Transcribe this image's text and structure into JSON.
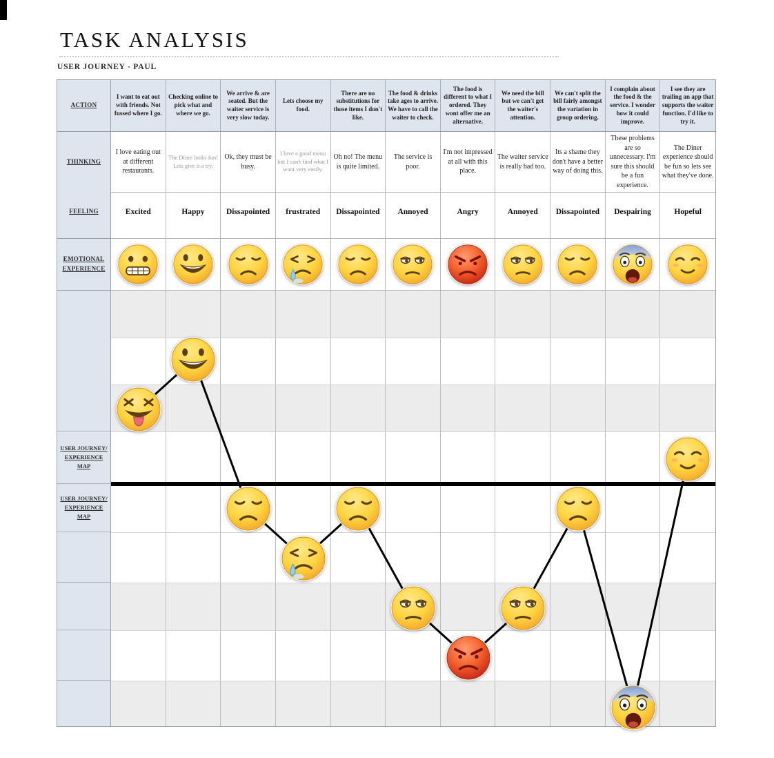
{
  "title": "TASK ANALYSIS",
  "subtitle": "USER JOURNEY - PAUL",
  "row_labels": {
    "action": "ACTION",
    "thinking": "THINKING",
    "feeling": "FEELING",
    "emotional": "EMOTIONAL EXPERIENCE",
    "map_upper": "USER JOURNEY/ EXPERIENCE MAP",
    "map_lower": "USER JOURNEY/ EXPERIENCE MAP"
  },
  "colors": {
    "header_bg": "#dfe5ee",
    "band_gray": "#ececec",
    "journey_line": "#000000",
    "emoji_yellow": "#ffd440",
    "emoji_red": "#e8472a"
  },
  "columns": [
    {
      "action": "I want to eat out with friends. Not fussed where I go.",
      "thinking": "I love eating out at different restaurants.",
      "feeling": "Excited",
      "emotion_icon": "grimacing",
      "map_icon": "squinting-tongue",
      "map_level": 1.5
    },
    {
      "action": "Checking online to pick what and where we go.",
      "thinking": "The Diner looks fun! Lets give it a try.",
      "feeling": "Happy",
      "emotion_icon": "grinning",
      "map_icon": "grinning",
      "map_level": 2.5
    },
    {
      "action": "We arrive & are seated. But the waiter service is very slow today.",
      "thinking": "Ok, they must be busy.",
      "feeling": "Dissapointed",
      "emotion_icon": "disappointed",
      "map_icon": "disappointed",
      "map_level": -0.5
    },
    {
      "action": "Lets choose my food.",
      "thinking": "I love a good menu but I can't find what I want very easily.",
      "feeling": "frustrated",
      "emotion_icon": "frustrated",
      "map_icon": "frustrated",
      "map_level": -1.5
    },
    {
      "action": "There are no substitutions for those items I don't like.",
      "thinking": "Oh no! The menu is quite limited.",
      "feeling": "Dissapointed",
      "emotion_icon": "disappointed",
      "map_icon": "disappointed",
      "map_level": -0.5
    },
    {
      "action": "The food & drinks take ages to arrive. We have to call the waiter to check.",
      "thinking": "The service is poor.",
      "feeling": "Annoyed",
      "emotion_icon": "unamused",
      "map_icon": "unamused",
      "map_level": -2.5
    },
    {
      "action": "The food is different to what I ordered. They wont offer me an alternative.",
      "thinking": "I'm not impressed at all with this place.",
      "feeling": "Angry",
      "emotion_icon": "angry",
      "map_icon": "angry",
      "map_level": -3.5
    },
    {
      "action": "We need the bill but we can't get the waiter's attention.",
      "thinking": "The waiter service is really bad too.",
      "feeling": "Annoyed",
      "emotion_icon": "unamused",
      "map_icon": "unamused",
      "map_level": -2.5
    },
    {
      "action": "We can't split the bill fairly amongst the variation in group ordering.",
      "thinking": "Its a shame they don't have a better way of doing this.",
      "feeling": "Dissapointed",
      "emotion_icon": "disappointed",
      "map_icon": "disappointed",
      "map_level": -0.5
    },
    {
      "action": "I complain about the food & the service. I wonder how it could improve.",
      "thinking": "These problems are so unnecessary. I'm sure this should be a fun experience.",
      "feeling": "Despairing",
      "emotion_icon": "screaming",
      "map_icon": "screaming",
      "map_level": -4.5
    },
    {
      "action": "I see they are trailing an app that supports the waiter function. I'd like to try it.",
      "thinking": "The Diner experience should be fun so lets see what they've done.",
      "feeling": "Hopeful",
      "emotion_icon": "relieved",
      "map_icon": "relieved",
      "map_level": 0.5
    }
  ]
}
